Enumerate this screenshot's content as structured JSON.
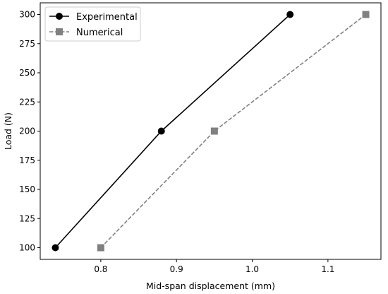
{
  "chart_data": {
    "type": "line",
    "xlabel": "Mid-span displacement (mm)",
    "ylabel": "Load (N)",
    "xlim": [
      0.72,
      1.17
    ],
    "ylim": [
      90,
      310
    ],
    "xticks": [
      0.8,
      0.9,
      1.0,
      1.1
    ],
    "xtick_labels": [
      "0.8",
      "0.9",
      "1.0",
      "1.1"
    ],
    "yticks": [
      100,
      125,
      150,
      175,
      200,
      225,
      250,
      275,
      300
    ],
    "ytick_labels": [
      "100",
      "125",
      "150",
      "175",
      "200",
      "225",
      "250",
      "275",
      "300"
    ],
    "grid": false,
    "legend_position": "top-left",
    "series": [
      {
        "name": "Experimental",
        "x": [
          0.74,
          0.88,
          1.05
        ],
        "y": [
          100,
          200,
          300
        ],
        "color": "#000000",
        "linestyle": "solid",
        "marker": "circle"
      },
      {
        "name": "Numerical",
        "x": [
          0.8,
          0.95,
          1.15
        ],
        "y": [
          100,
          200,
          300
        ],
        "color": "#808080",
        "linestyle": "dashed",
        "marker": "square"
      }
    ]
  }
}
